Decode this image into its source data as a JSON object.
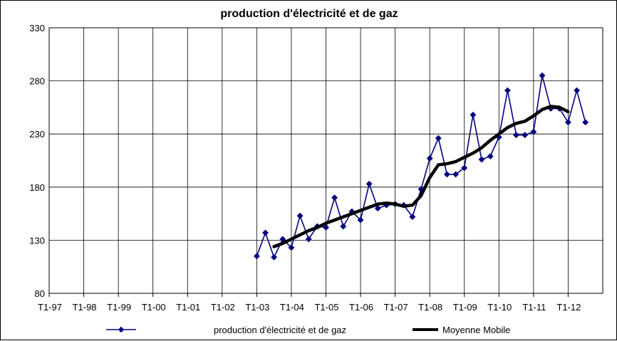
{
  "chart_data": {
    "type": "line",
    "title": "production d'électricité et de gaz",
    "xlabel": "",
    "ylabel": "",
    "ylim": [
      80,
      330
    ],
    "yticks": [
      "80",
      "130",
      "180",
      "230",
      "280",
      "330"
    ],
    "xticks": [
      "T1-97",
      "T1-98",
      "T1-99",
      "T1-00",
      "T1-01",
      "T1-02",
      "T1-03",
      "T1-04",
      "T1-05",
      "T1-06",
      "T1-07",
      "T1-08",
      "T1-09",
      "T1-10",
      "T1-11",
      "T1-12"
    ],
    "grid": true,
    "legend": "bottom",
    "x_quarter_labels_start": "T1-97",
    "series": [
      {
        "name": "production d'électricité et de gaz",
        "color": "#000080",
        "marker": "diamond",
        "start": "T1-03",
        "values": [
          115,
          137,
          114,
          131,
          123,
          153,
          131,
          143,
          142,
          170,
          143,
          157,
          149,
          183,
          160,
          163,
          164,
          163,
          152,
          178,
          207,
          226,
          192,
          192,
          198,
          248,
          206,
          209,
          227,
          271,
          229,
          229,
          232,
          285,
          254,
          254,
          241,
          271,
          241
        ]
      },
      {
        "name": "Moyenne Mobile",
        "color": "#000000",
        "marker": "none",
        "start": "T3-03",
        "values": [
          124,
          127,
          131,
          135,
          139,
          142,
          146,
          149,
          152,
          155,
          158,
          161,
          164,
          165,
          164,
          162,
          163,
          172,
          189,
          201,
          202,
          204,
          208,
          212,
          217,
          224,
          230,
          236,
          240,
          242,
          247,
          253,
          256,
          255,
          251
        ]
      }
    ]
  }
}
